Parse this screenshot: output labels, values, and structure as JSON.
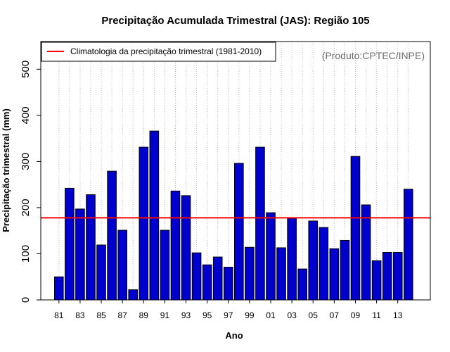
{
  "chart_data": {
    "type": "bar",
    "title": "Precipitação Acumulada Trimestral (JAS): Região 105",
    "xlabel": "Ano",
    "ylabel": "Precipitação trimestral (mm)",
    "source_note": "(Produto:CPTEC/INPE)",
    "categories": [
      "81",
      "82",
      "83",
      "84",
      "85",
      "86",
      "87",
      "88",
      "89",
      "90",
      "91",
      "92",
      "93",
      "94",
      "95",
      "96",
      "97",
      "98",
      "99",
      "00",
      "01",
      "02",
      "03",
      "04",
      "05",
      "06",
      "07",
      "08",
      "09",
      "10",
      "11",
      "12",
      "13",
      "14"
    ],
    "values": [
      50,
      242,
      197,
      228,
      119,
      279,
      151,
      22,
      331,
      366,
      151,
      236,
      226,
      102,
      76,
      93,
      71,
      296,
      114,
      331,
      189,
      113,
      177,
      67,
      171,
      157,
      111,
      129,
      311,
      206,
      85,
      103,
      103,
      240
    ],
    "xtick_labels": [
      "81",
      "83",
      "85",
      "87",
      "89",
      "91",
      "93",
      "95",
      "97",
      "99",
      "01",
      "03",
      "05",
      "07",
      "09",
      "11",
      "13"
    ],
    "ylim": [
      0,
      560
    ],
    "yticks": [
      0,
      100,
      200,
      300,
      400,
      500
    ],
    "ytick_labels": [
      "0",
      "100",
      "200",
      "300",
      "400",
      "500"
    ],
    "reference_line": {
      "value": 178,
      "label": "Climatologia da precipitação trimestral (1981-2010)",
      "color": "#ff0000"
    },
    "bar_color": "#0000cc",
    "grid": "vertical dotted",
    "legend_position": "top-left"
  }
}
